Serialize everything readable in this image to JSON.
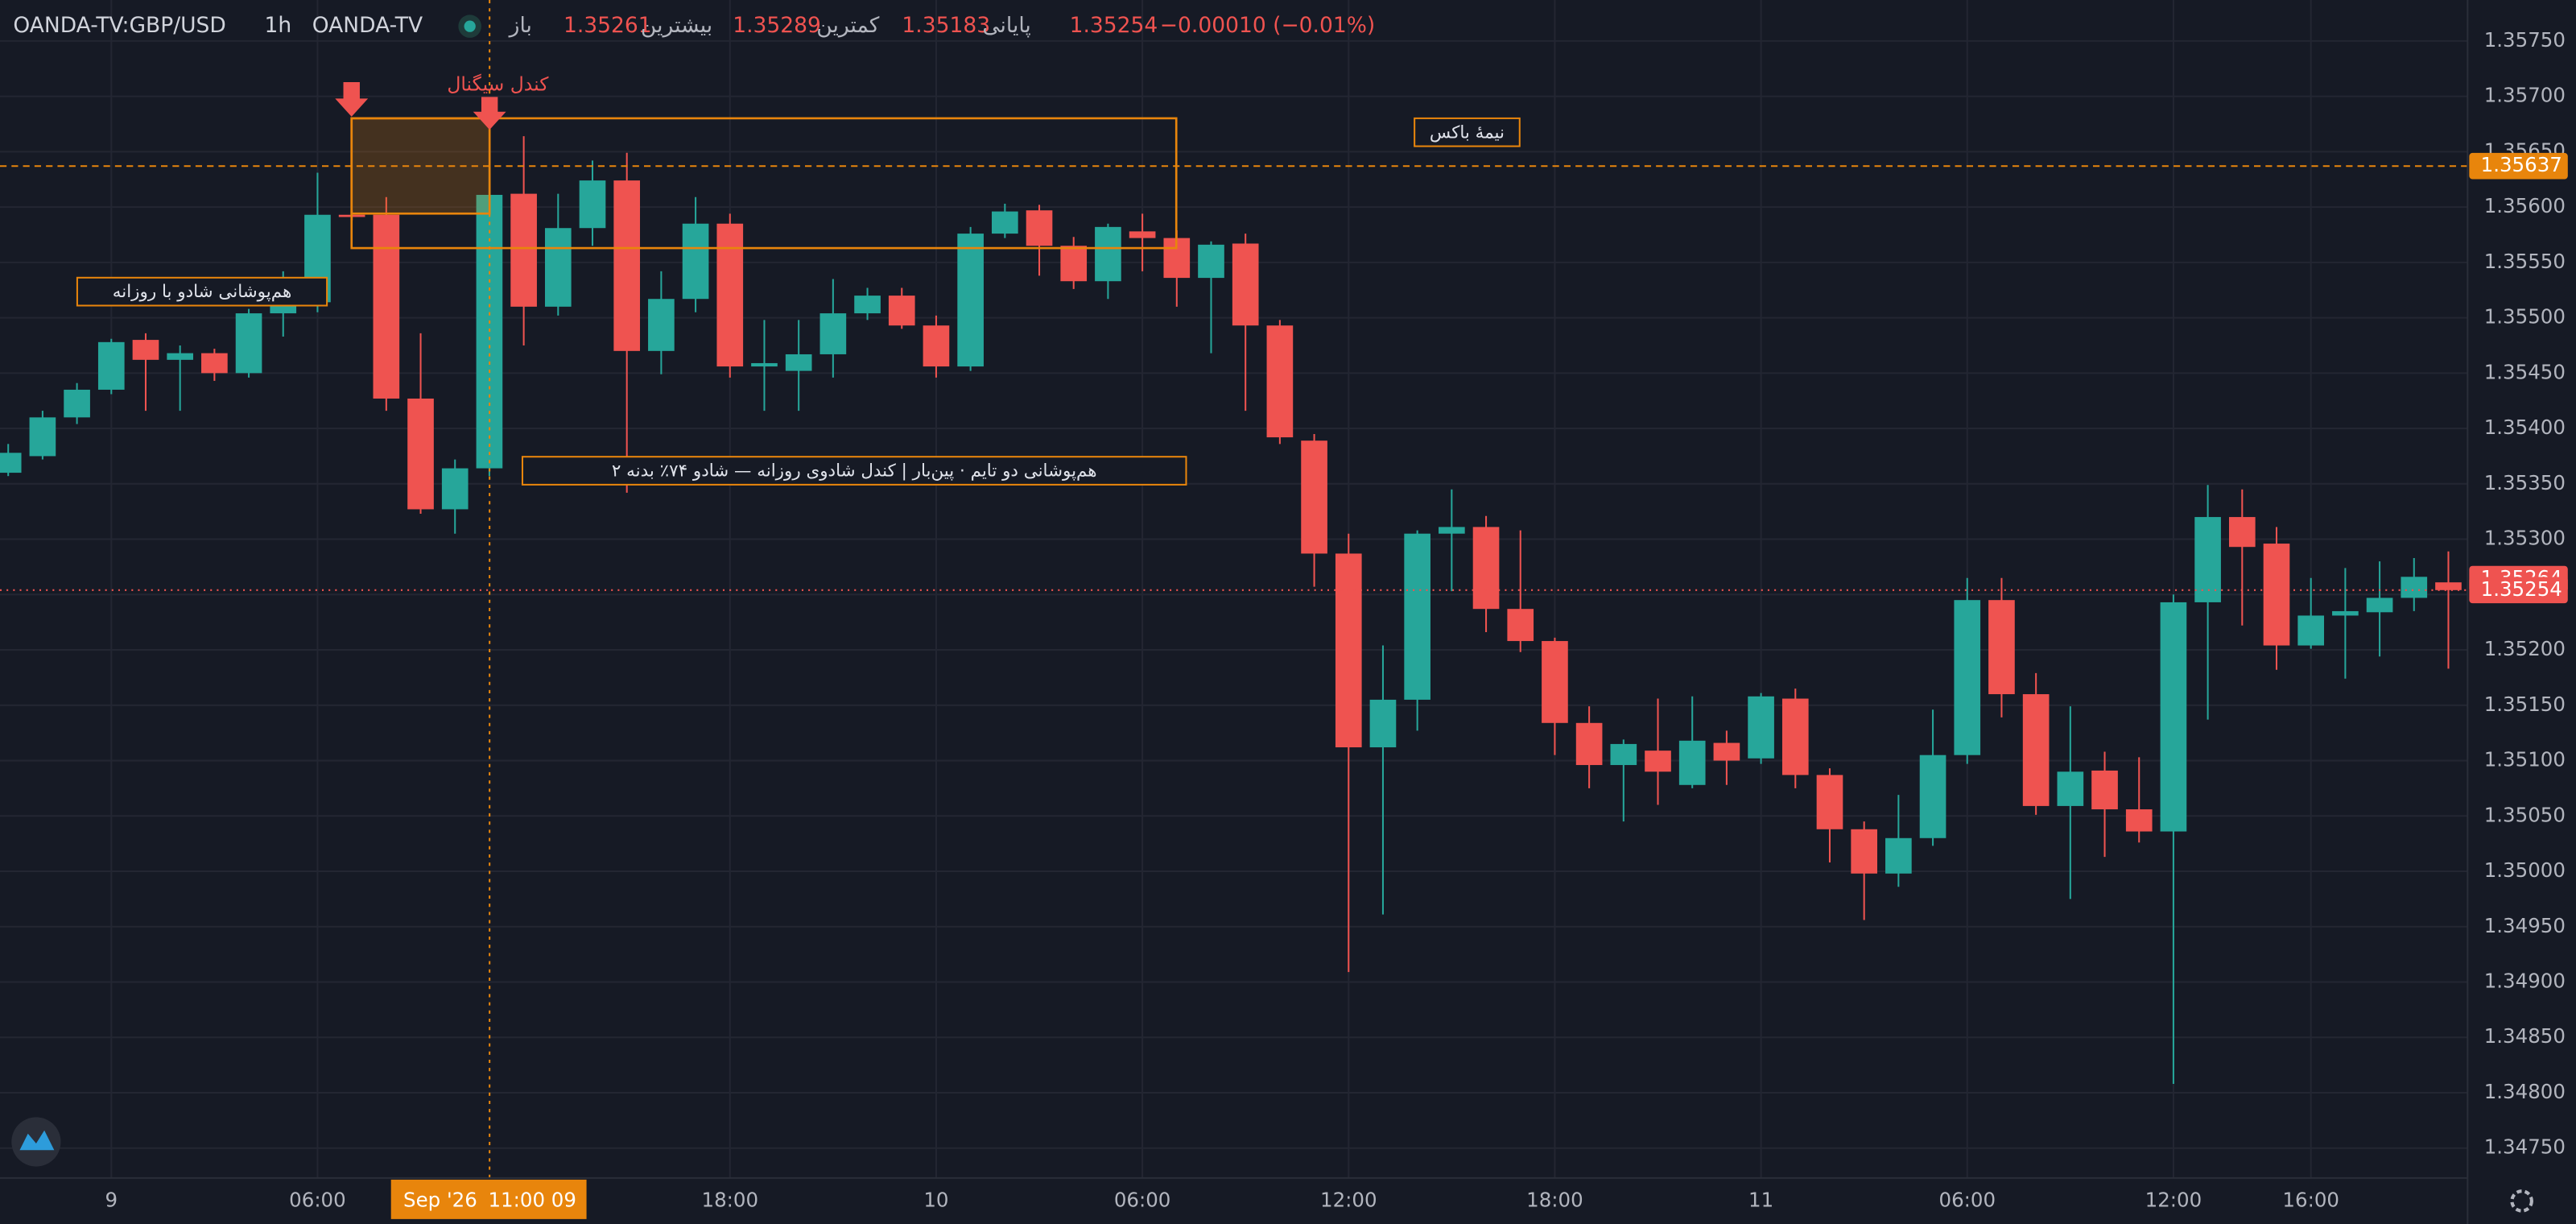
{
  "header": {
    "symbol": "OANDA-TV:GBP/USD",
    "interval": "1h",
    "source": "OANDA-TV",
    "open_label": "باز",
    "high_label": "بیشترین",
    "low_label": "کمترین",
    "close_label": "پایانی",
    "change": "−0.00010 (−0.01%)"
  },
  "chart_data": {
    "type": "candlestick",
    "categories": [
      null,
      null,
      null,
      "9",
      null,
      null,
      null,
      null,
      null,
      "06:00",
      null,
      null,
      null,
      null,
      null,
      null,
      null,
      null,
      null,
      null,
      null,
      "18:00",
      null,
      null,
      null,
      null,
      null,
      "10",
      null,
      null,
      null,
      null,
      null,
      "06:00",
      null,
      null,
      null,
      null,
      null,
      "12:00",
      null,
      null,
      null,
      null,
      null,
      "18:00",
      null,
      null,
      null,
      null,
      null,
      "11",
      null,
      null,
      null,
      null,
      null,
      "06:00",
      null,
      null,
      null,
      null,
      null,
      "12:00",
      null,
      null,
      null,
      "16:00",
      null,
      null,
      null,
      null
    ],
    "open": [
      1.3536,
      1.35375,
      1.3541,
      1.35435,
      1.3548,
      1.35462,
      1.35468,
      1.3545,
      1.35504,
      1.35514,
      1.35593,
      1.35593,
      1.35427,
      1.35327,
      1.35364,
      1.35612,
      1.3551,
      1.35581,
      1.35624,
      1.3547,
      1.35517,
      1.35585,
      1.35456,
      1.35452,
      1.35467,
      1.35504,
      1.3552,
      1.35493,
      1.35456,
      1.35576,
      1.35597,
      1.35565,
      1.35533,
      1.35578,
      1.35572,
      1.35536,
      1.35567,
      1.35493,
      1.35389,
      1.35287,
      1.35112,
      1.35155,
      1.35305,
      1.35311,
      1.35237,
      1.35208,
      1.35134,
      1.35096,
      1.35109,
      1.35078,
      1.35116,
      1.35102,
      1.35156,
      1.35087,
      1.35038,
      1.34998,
      1.3503,
      1.35105,
      1.35245,
      1.3516,
      1.35059,
      1.35091,
      1.35056,
      1.35036,
      1.35243,
      1.3532,
      1.35296,
      1.35204,
      1.35231,
      1.35234,
      1.35247,
      1.35261
    ],
    "high": [
      1.35386,
      1.35416,
      1.35441,
      1.35481,
      1.35486,
      1.35475,
      1.35472,
      1.35508,
      1.35542,
      1.35631,
      1.35597,
      1.35609,
      1.35486,
      1.35372,
      1.35639,
      1.35664,
      1.35612,
      1.35642,
      1.35649,
      1.35542,
      1.35609,
      1.35594,
      1.35498,
      1.35498,
      1.35535,
      1.35527,
      1.35527,
      1.35502,
      1.35582,
      1.35603,
      1.35602,
      1.35573,
      1.35585,
      1.35594,
      1.35579,
      1.35569,
      1.35576,
      1.35498,
      1.35395,
      1.35305,
      1.35204,
      1.35308,
      1.35345,
      1.35321,
      1.35308,
      1.35211,
      1.35149,
      1.35119,
      1.35156,
      1.35158,
      1.35127,
      1.35161,
      1.35165,
      1.35093,
      1.35045,
      1.35069,
      1.35146,
      1.35265,
      1.35265,
      1.35179,
      1.35149,
      1.35108,
      1.35103,
      1.3525,
      1.35349,
      1.35345,
      1.35311,
      1.35265,
      1.35274,
      1.3528,
      1.35283,
      1.35289
    ],
    "low": [
      1.35357,
      1.35372,
      1.35404,
      1.35431,
      1.35416,
      1.35416,
      1.35443,
      1.35446,
      1.35483,
      1.35505,
      1.35588,
      1.35416,
      1.35323,
      1.35305,
      1.35357,
      1.35475,
      1.35502,
      1.35565,
      1.35342,
      1.35449,
      1.35505,
      1.35446,
      1.35416,
      1.35416,
      1.35446,
      1.35498,
      1.3549,
      1.35446,
      1.35452,
      1.35572,
      1.35538,
      1.35526,
      1.35517,
      1.35542,
      1.3551,
      1.35468,
      1.35416,
      1.35386,
      1.35257,
      1.34909,
      1.34961,
      1.35127,
      1.35253,
      1.35216,
      1.35198,
      1.35105,
      1.35075,
      1.35045,
      1.3506,
      1.35075,
      1.35078,
      1.35097,
      1.35075,
      1.35008,
      1.34956,
      1.34986,
      1.35023,
      1.35097,
      1.35139,
      1.35051,
      1.34975,
      1.35013,
      1.35026,
      1.34808,
      1.35137,
      1.35222,
      1.35182,
      1.35201,
      1.35174,
      1.35194,
      1.35235,
      1.35183
    ],
    "close": [
      1.35378,
      1.3541,
      1.35435,
      1.35478,
      1.35462,
      1.35468,
      1.3545,
      1.35504,
      1.35514,
      1.35593,
      1.35591,
      1.35427,
      1.35327,
      1.35364,
      1.35611,
      1.3551,
      1.35581,
      1.35624,
      1.3547,
      1.35517,
      1.35585,
      1.35456,
      1.35459,
      1.35467,
      1.35504,
      1.3552,
      1.35493,
      1.35456,
      1.35576,
      1.35596,
      1.35565,
      1.35533,
      1.35582,
      1.35572,
      1.35536,
      1.35566,
      1.35493,
      1.35392,
      1.35287,
      1.35112,
      1.35155,
      1.35305,
      1.35311,
      1.35237,
      1.35208,
      1.35134,
      1.35096,
      1.35115,
      1.3509,
      1.35118,
      1.351,
      1.35158,
      1.35087,
      1.35038,
      1.34998,
      1.3503,
      1.35105,
      1.35245,
      1.3516,
      1.35059,
      1.3509,
      1.35056,
      1.35036,
      1.35243,
      1.3532,
      1.35293,
      1.35204,
      1.35231,
      1.35235,
      1.35247,
      1.35266,
      1.35254
    ],
    "up_color": "#26a69a",
    "down_color": "#ef5350",
    "ylim": [
      1.34723,
      1.35787
    ],
    "yticks": [
      {
        "value": 1.3475,
        "label": "1.34750"
      },
      {
        "value": 1.348,
        "label": "1.34800"
      },
      {
        "value": 1.3485,
        "label": "1.34850"
      },
      {
        "value": 1.349,
        "label": "1.34900"
      },
      {
        "value": 1.3495,
        "label": "1.34950"
      },
      {
        "value": 1.35,
        "label": "1.35000"
      },
      {
        "value": 1.3505,
        "label": "1.35050"
      },
      {
        "value": 1.351,
        "label": "1.35100"
      },
      {
        "value": 1.3515,
        "label": "1.35150"
      },
      {
        "value": 1.352,
        "label": "1.35200"
      },
      {
        "value": 1.3525,
        "label": "1.35250"
      },
      {
        "value": 1.353,
        "label": "1.35300"
      },
      {
        "value": 1.3535,
        "label": "1.35350"
      },
      {
        "value": 1.354,
        "label": "1.35400"
      },
      {
        "value": 1.3545,
        "label": "1.35450"
      },
      {
        "value": 1.355,
        "label": "1.35500"
      },
      {
        "value": 1.3555,
        "label": "1.35550"
      },
      {
        "value": 1.356,
        "label": "1.35600"
      },
      {
        "value": 1.3565,
        "label": "1.35650"
      },
      {
        "value": 1.357,
        "label": "1.35700"
      },
      {
        "value": 1.3575,
        "label": "1.35750"
      }
    ],
    "grid": true,
    "level": 1.35637,
    "level_color": "#e8850c",
    "mark_price": 1.35264,
    "crosshair": {
      "date": "Sep '26",
      "time": "11:00 09"
    },
    "annotations": {
      "signal": "کندل سیگنال",
      "half_box": "نیمهٔ باکس",
      "daily_overlap": "هم‌پوشانی شادو با روزانه",
      "pinbar": "هم‌پوشانی دو تایم · پین‌بار | کندل شادوی روزانه — شادو ۷۴٪ بدنه ۲"
    }
  }
}
